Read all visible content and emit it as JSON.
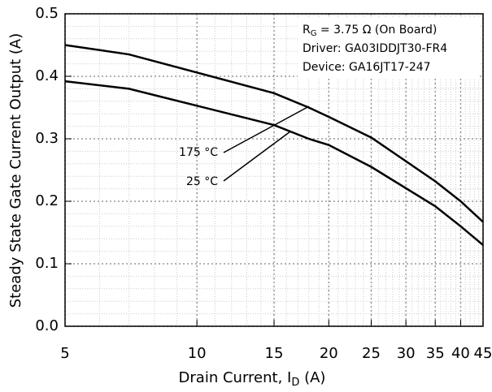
{
  "chart_data": {
    "type": "line",
    "x_label": {
      "main": "Drain Current, I",
      "sub": "D",
      "tail": " (A)"
    },
    "y_label": "Steady State Gate Current Output (A)",
    "annotation": {
      "rg": {
        "main": "R",
        "sub": "G",
        "tail": " = 3.75 Ω (On Board)"
      },
      "driver": "Driver: GA03IDDJT30-FR4",
      "device": "Device: GA16JT17-247"
    },
    "x_scale": "log",
    "series": [
      {
        "name": "175 °C",
        "color": "#000000",
        "x": [
          5,
          7,
          15,
          18,
          20,
          25,
          35,
          40,
          45
        ],
        "values": [
          0.45,
          0.435,
          0.373,
          0.35,
          0.335,
          0.302,
          0.232,
          0.2,
          0.167
        ]
      },
      {
        "name": "25 °C",
        "color": "#000000",
        "x": [
          5,
          7,
          15,
          18,
          20,
          25,
          35,
          40,
          45
        ],
        "values": [
          0.392,
          0.38,
          0.322,
          0.3,
          0.29,
          0.255,
          0.192,
          0.16,
          0.13
        ]
      }
    ],
    "xlim": [
      5,
      45
    ],
    "xticks": [
      5,
      10,
      15,
      20,
      25,
      30,
      35,
      40,
      45
    ],
    "ylim": [
      0,
      0.5
    ],
    "yticks": [
      {
        "value": 0,
        "label": "0.0"
      },
      0.1,
      0.2,
      0.3,
      0.4,
      0.5
    ],
    "grid": true
  }
}
